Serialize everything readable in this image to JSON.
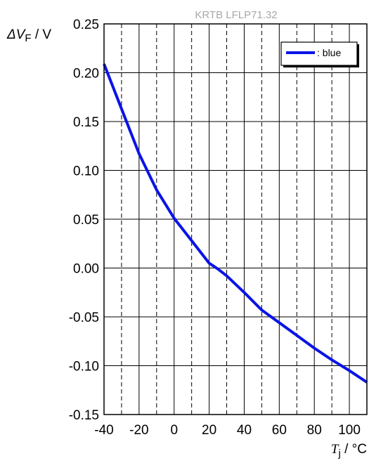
{
  "chart_data": {
    "type": "line",
    "subtitle": "KRTB LFLP71.32",
    "ylabel": {
      "symbol": "ΔV",
      "subscript": "F",
      "unit": " / V"
    },
    "xlabel": {
      "symbol": "T",
      "subscript": "j",
      "unit": " / °C"
    },
    "xlim": [
      -40,
      110
    ],
    "ylim": [
      -0.15,
      0.25
    ],
    "x_ticks": [
      -40,
      -20,
      0,
      20,
      40,
      60,
      80,
      100
    ],
    "x_tick_labels": [
      "-40",
      "-20",
      "0",
      "20",
      "40",
      "60",
      "80",
      "100"
    ],
    "y_ticks": [
      -0.15,
      -0.1,
      -0.05,
      0.0,
      0.05,
      0.1,
      0.15,
      0.2,
      0.25
    ],
    "y_tick_labels": [
      "-0.15",
      "-0.10",
      "-0.05",
      "0.00",
      "0.05",
      "0.10",
      "0.15",
      "0.20",
      "0.25"
    ],
    "grid": {
      "vertical_solid": [
        -20,
        0,
        20,
        40,
        60,
        80,
        100
      ],
      "vertical_dashed": [
        -30,
        -10,
        10,
        30,
        50,
        70,
        90
      ],
      "horizontal_solid": [
        -0.1,
        -0.05,
        0.0,
        0.05,
        0.1,
        0.15,
        0.2
      ]
    },
    "legend": {
      "position": "top-right"
    },
    "series": [
      {
        "name": ": blue",
        "color": "#0a14e6",
        "x": [
          -40,
          -30,
          -20,
          -10,
          0,
          10,
          20,
          25,
          30,
          40,
          50,
          60,
          70,
          80,
          90,
          100,
          110
        ],
        "y": [
          0.209,
          0.163,
          0.117,
          0.08,
          0.051,
          0.028,
          0.005,
          -0.001,
          -0.008,
          -0.025,
          -0.043,
          -0.056,
          -0.069,
          -0.082,
          -0.094,
          -0.105,
          -0.117
        ]
      }
    ]
  }
}
